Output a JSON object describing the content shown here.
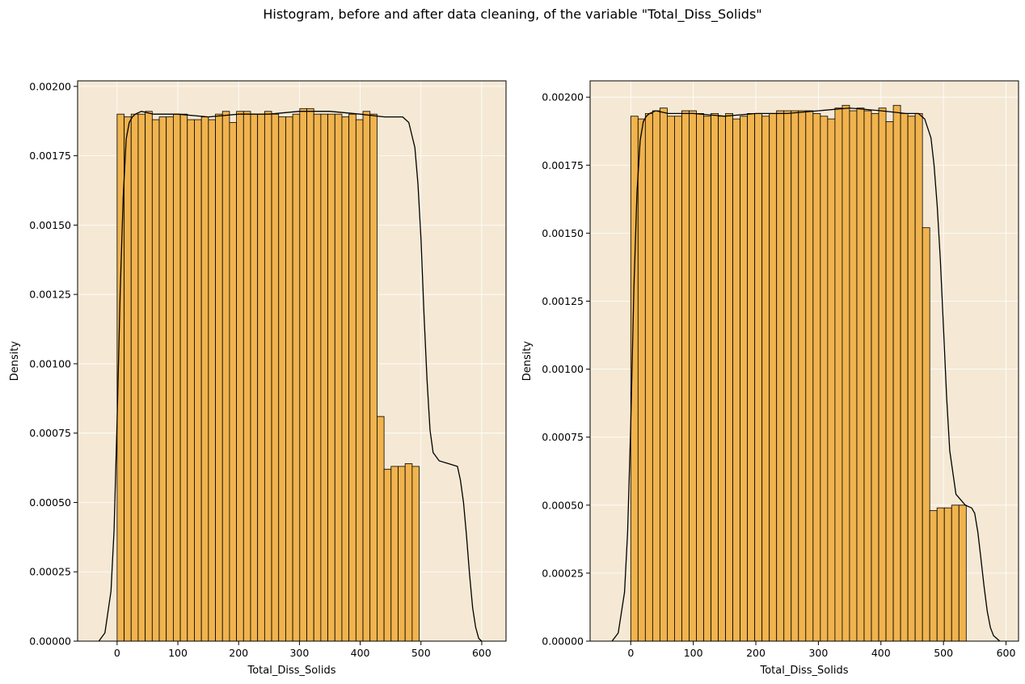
{
  "suptitle": "Histogram, before and after data cleaning, of the variable \"Total_Diss_Solids\"",
  "colors": {
    "plot_background": "#f5e9d5",
    "bar_fill": "#f0b34e",
    "bar_edge": "#000000",
    "kde_line": "#000000",
    "grid": "#ffffff"
  },
  "chart_data": [
    {
      "type": "bar",
      "subtype": "histogram_with_kde",
      "xlabel": "Total_Diss_Solids",
      "ylabel": "Density",
      "xlim": [
        -65,
        640
      ],
      "ylim": [
        0,
        0.00202
      ],
      "xticks": [
        0,
        100,
        200,
        300,
        400,
        500,
        600
      ],
      "yticks": [
        0,
        0.00025,
        0.0005,
        0.00075,
        0.001,
        0.00125,
        0.0015,
        0.00175,
        0.002
      ],
      "ytick_labels": [
        "0.00000",
        "0.00025",
        "0.00050",
        "0.00075",
        "0.00100",
        "0.00125",
        "0.00150",
        "0.00175",
        "0.00200"
      ],
      "grid": true,
      "bin_start": 0,
      "bin_width": 11.56,
      "values": [
        0.0019,
        0.00189,
        0.0019,
        0.0019,
        0.00191,
        0.00188,
        0.00189,
        0.00189,
        0.0019,
        0.0019,
        0.00188,
        0.00188,
        0.00189,
        0.00188,
        0.0019,
        0.00191,
        0.00187,
        0.00191,
        0.00191,
        0.0019,
        0.0019,
        0.00191,
        0.0019,
        0.00189,
        0.00189,
        0.0019,
        0.00192,
        0.00192,
        0.0019,
        0.0019,
        0.0019,
        0.0019,
        0.00189,
        0.0019,
        0.00188,
        0.00191,
        0.0019,
        0.00081,
        0.00062,
        0.00063,
        0.00063,
        0.00064,
        0.00063
      ],
      "kde": {
        "x": [
          -30,
          -20,
          -10,
          -5,
          0,
          5,
          10,
          15,
          20,
          25,
          30,
          40,
          60,
          100,
          150,
          200,
          250,
          300,
          350,
          400,
          440,
          470,
          480,
          490,
          495,
          500,
          505,
          510,
          515,
          520,
          530,
          545,
          560,
          565,
          570,
          575,
          580,
          585,
          590,
          595,
          600
        ],
        "y": [
          0.0,
          3e-05,
          0.00018,
          0.0004,
          0.0008,
          0.00125,
          0.0016,
          0.00181,
          0.00187,
          0.00189,
          0.0019,
          0.00191,
          0.0019,
          0.0019,
          0.00189,
          0.0019,
          0.0019,
          0.00191,
          0.00191,
          0.0019,
          0.00189,
          0.00189,
          0.00187,
          0.00178,
          0.00165,
          0.00145,
          0.00118,
          0.00094,
          0.00076,
          0.00068,
          0.00065,
          0.00064,
          0.00063,
          0.00058,
          0.0005,
          0.00038,
          0.00024,
          0.00012,
          5e-05,
          1e-05,
          0.0
        ]
      }
    },
    {
      "type": "bar",
      "subtype": "histogram_with_kde",
      "xlabel": "Total_Diss_Solids",
      "ylabel": "Density",
      "xlim": [
        -65,
        620
      ],
      "ylim": [
        0,
        0.00206
      ],
      "xticks": [
        0,
        100,
        200,
        300,
        400,
        500,
        600
      ],
      "yticks": [
        0,
        0.00025,
        0.0005,
        0.00075,
        0.001,
        0.00125,
        0.0015,
        0.00175,
        0.002
      ],
      "ytick_labels": [
        "0.00000",
        "0.00025",
        "0.00050",
        "0.00075",
        "0.00100",
        "0.00125",
        "0.00150",
        "0.00175",
        "0.00200"
      ],
      "grid": true,
      "bin_start": 0,
      "bin_width": 11.66,
      "values": [
        0.00193,
        0.00192,
        0.00194,
        0.00195,
        0.00196,
        0.00193,
        0.00193,
        0.00195,
        0.00195,
        0.00194,
        0.00193,
        0.00194,
        0.00193,
        0.00194,
        0.00192,
        0.00193,
        0.00194,
        0.00194,
        0.00193,
        0.00194,
        0.00195,
        0.00195,
        0.00195,
        0.00195,
        0.00195,
        0.00194,
        0.00193,
        0.00192,
        0.00196,
        0.00197,
        0.00195,
        0.00196,
        0.00195,
        0.00194,
        0.00196,
        0.00191,
        0.00197,
        0.00194,
        0.00193,
        0.00194,
        0.00152,
        0.00048,
        0.00049,
        0.00049,
        0.0005,
        0.0005
      ],
      "kde": {
        "x": [
          -30,
          -20,
          -10,
          -5,
          0,
          5,
          10,
          15,
          20,
          25,
          30,
          40,
          60,
          100,
          150,
          200,
          250,
          300,
          350,
          400,
          440,
          460,
          470,
          480,
          485,
          490,
          495,
          500,
          505,
          510,
          520,
          535,
          545,
          550,
          555,
          560,
          565,
          570,
          575,
          580,
          590
        ],
        "y": [
          0.0,
          3e-05,
          0.00018,
          0.0004,
          0.0008,
          0.0013,
          0.00165,
          0.00184,
          0.00191,
          0.00193,
          0.00194,
          0.00195,
          0.00194,
          0.00194,
          0.00193,
          0.00194,
          0.00194,
          0.00195,
          0.00196,
          0.00195,
          0.00194,
          0.00194,
          0.00192,
          0.00185,
          0.00175,
          0.0016,
          0.0014,
          0.00115,
          0.0009,
          0.0007,
          0.00054,
          0.0005,
          0.00049,
          0.00047,
          0.0004,
          0.0003,
          0.0002,
          0.00011,
          5e-05,
          2e-05,
          0.0
        ]
      }
    }
  ]
}
